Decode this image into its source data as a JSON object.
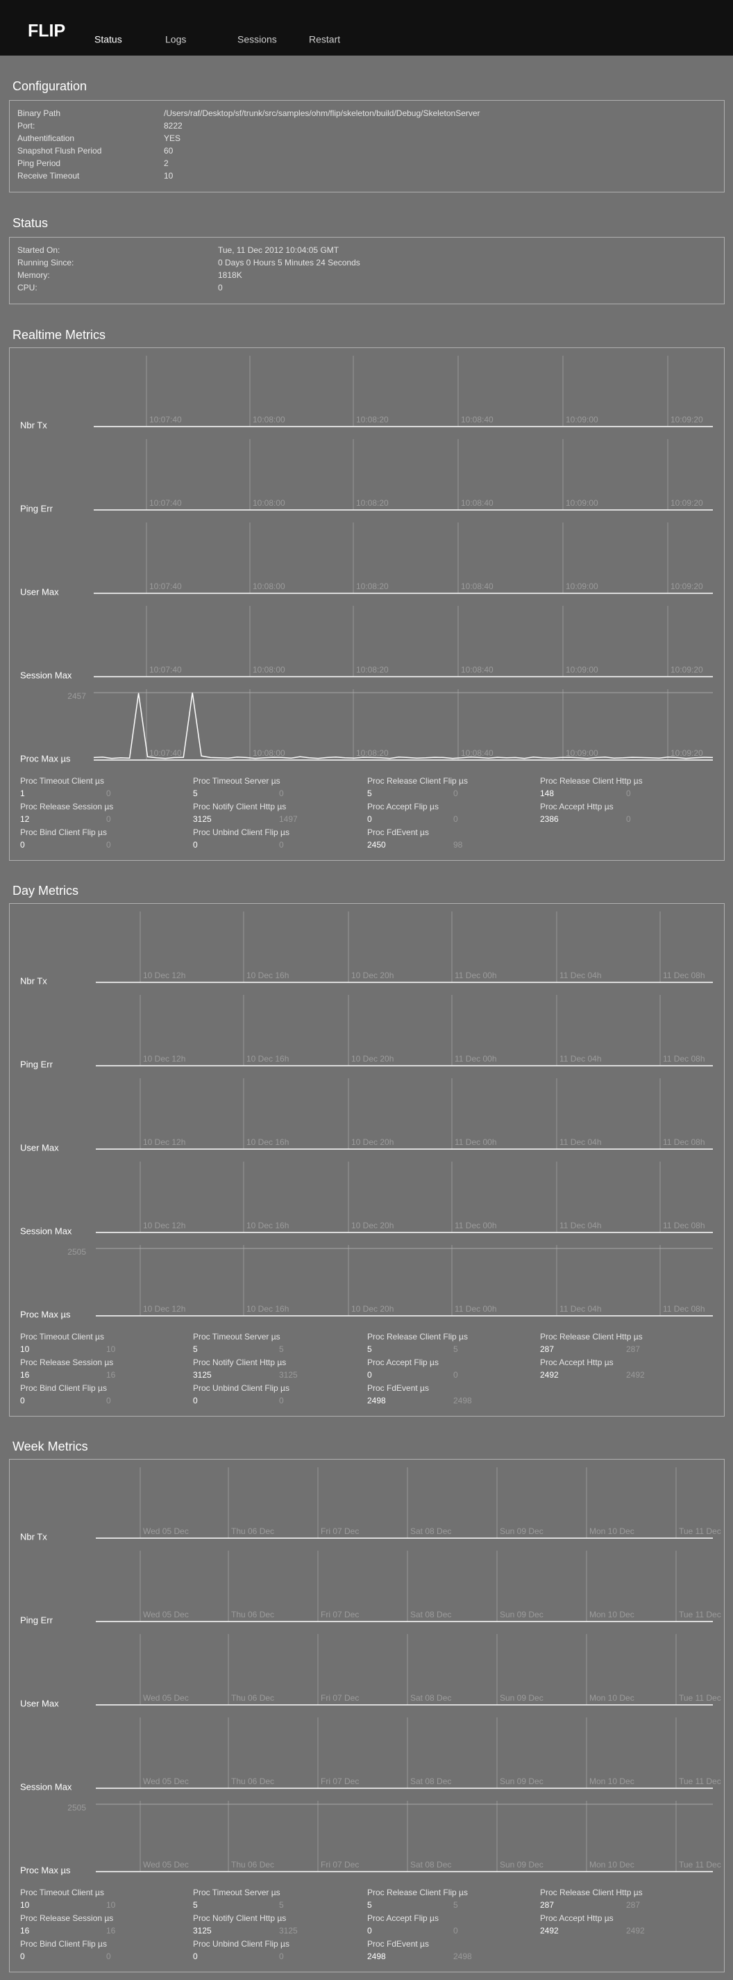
{
  "nav": {
    "logo": "FLIP",
    "items": [
      "Status",
      "Logs",
      "Sessions",
      "Restart"
    ]
  },
  "configuration": {
    "title": "Configuration",
    "rows": [
      {
        "label": "Binary Path",
        "value": "/Users/raf/Desktop/sf/trunk/src/samples/ohm/flip/skeleton/build/Debug/SkeletonServer"
      },
      {
        "label": "Port:",
        "value": "8222"
      },
      {
        "label": "Authentification",
        "value": "YES"
      },
      {
        "label": "Snapshot Flush Period",
        "value": "60"
      },
      {
        "label": "Ping Period",
        "value": "2"
      },
      {
        "label": "Receive Timeout",
        "value": "10"
      }
    ]
  },
  "status": {
    "title": "Status",
    "rows": [
      {
        "label": "Started On:",
        "value": "Tue, 11 Dec 2012 10:04:05 GMT"
      },
      {
        "label": "Running Since:",
        "value": "0 Days 0 Hours 5 Minutes 24 Seconds"
      },
      {
        "label": "Memory:",
        "value": "1818K"
      },
      {
        "label": "CPU:",
        "value": "0"
      }
    ]
  },
  "metrics": [
    {
      "title": "Realtime Metrics",
      "ticks": [
        "10:07:40",
        "10:08:00",
        "10:08:20",
        "10:08:40",
        "10:09:00",
        "10:09:20"
      ],
      "charts": [
        {
          "label": "Nbr Tx"
        },
        {
          "label": "Ping Err"
        },
        {
          "label": "User Max"
        },
        {
          "label": "Session Max"
        },
        {
          "label": "Proc Max µs",
          "type": "line",
          "ylim": [
            0,
            2457
          ],
          "yticks": [
            2457
          ],
          "values": [
            90,
            110,
            60,
            80,
            70,
            2440,
            120,
            80,
            60,
            90,
            100,
            2457,
            150,
            90,
            80,
            70,
            110,
            90,
            60,
            80,
            100,
            90,
            70,
            120,
            80,
            60,
            90,
            110,
            80,
            70,
            100,
            90,
            80,
            60,
            110,
            90,
            70,
            80,
            100,
            90,
            60,
            80,
            110,
            90,
            70,
            100,
            80,
            90,
            60,
            110,
            80,
            70,
            90,
            100,
            80,
            60,
            90,
            110,
            70,
            80,
            100,
            90,
            80,
            70,
            110,
            90,
            60,
            80,
            100,
            90
          ]
        }
      ],
      "stats": [
        {
          "name": "Proc Timeout Client µs",
          "value": 1,
          "value2": 0
        },
        {
          "name": "Proc Timeout Server µs",
          "value": 5,
          "value2": 0
        },
        {
          "name": "Proc Release Client Flip µs",
          "value": 5,
          "value2": 0
        },
        {
          "name": "Proc Release Client Http µs",
          "value": 148,
          "value2": 0
        },
        {
          "name": "Proc Release Session µs",
          "value": 12,
          "value2": 0
        },
        {
          "name": "Proc Notify Client Http µs",
          "value": 3125,
          "value2": 1497
        },
        {
          "name": "Proc Accept Flip µs",
          "value": 0,
          "value2": 0
        },
        {
          "name": "Proc Accept Http µs",
          "value": 2386,
          "value2": 0
        },
        {
          "name": "Proc Bind Client Flip µs",
          "value": 0,
          "value2": 0
        },
        {
          "name": "Proc Unbind Client Flip µs",
          "value": 0,
          "value2": 0
        },
        {
          "name": "Proc FdEvent µs",
          "value": 2450,
          "value2": 98
        }
      ]
    },
    {
      "title": "Day Metrics",
      "ticks": [
        "10 Dec 12h",
        "10 Dec 16h",
        "10 Dec 20h",
        "11 Dec 00h",
        "11 Dec 04h",
        "11 Dec 08h"
      ],
      "charts": [
        {
          "label": "Nbr Tx"
        },
        {
          "label": "Ping Err"
        },
        {
          "label": "User Max"
        },
        {
          "label": "Session Max"
        },
        {
          "label": "Proc Max µs",
          "ylim": [
            0,
            2505
          ],
          "yticks": [
            2505
          ]
        }
      ],
      "stats": [
        {
          "name": "Proc Timeout Client µs",
          "value": 10,
          "value2": 10
        },
        {
          "name": "Proc Timeout Server µs",
          "value": 5,
          "value2": 5
        },
        {
          "name": "Proc Release Client Flip µs",
          "value": 5,
          "value2": 5
        },
        {
          "name": "Proc Release Client Http µs",
          "value": 287,
          "value2": 287
        },
        {
          "name": "Proc Release Session µs",
          "value": 16,
          "value2": 16
        },
        {
          "name": "Proc Notify Client Http µs",
          "value": 3125,
          "value2": 3125
        },
        {
          "name": "Proc Accept Flip µs",
          "value": 0,
          "value2": 0
        },
        {
          "name": "Proc Accept Http µs",
          "value": 2492,
          "value2": 2492
        },
        {
          "name": "Proc Bind Client Flip µs",
          "value": 0,
          "value2": 0
        },
        {
          "name": "Proc Unbind Client Flip µs",
          "value": 0,
          "value2": 0
        },
        {
          "name": "Proc FdEvent µs",
          "value": 2498,
          "value2": 2498
        }
      ]
    },
    {
      "title": "Week Metrics",
      "ticks": [
        "Wed 05 Dec",
        "Thu 06 Dec",
        "Fri 07 Dec",
        "Sat 08 Dec",
        "Sun 09 Dec",
        "Mon 10 Dec",
        "Tue 11 Dec"
      ],
      "charts": [
        {
          "label": "Nbr Tx"
        },
        {
          "label": "Ping Err"
        },
        {
          "label": "User Max"
        },
        {
          "label": "Session Max"
        },
        {
          "label": "Proc Max µs",
          "ylim": [
            0,
            2505
          ],
          "yticks": [
            2505
          ]
        }
      ],
      "stats": [
        {
          "name": "Proc Timeout Client µs",
          "value": 10,
          "value2": 10
        },
        {
          "name": "Proc Timeout Server µs",
          "value": 5,
          "value2": 5
        },
        {
          "name": "Proc Release Client Flip µs",
          "value": 5,
          "value2": 5
        },
        {
          "name": "Proc Release Client Http µs",
          "value": 287,
          "value2": 287
        },
        {
          "name": "Proc Release Session µs",
          "value": 16,
          "value2": 16
        },
        {
          "name": "Proc Notify Client Http µs",
          "value": 3125,
          "value2": 3125
        },
        {
          "name": "Proc Accept Flip µs",
          "value": 0,
          "value2": 0
        },
        {
          "name": "Proc Accept Http µs",
          "value": 2492,
          "value2": 2492
        },
        {
          "name": "Proc Bind Client Flip µs",
          "value": 0,
          "value2": 0
        },
        {
          "name": "Proc Unbind Client Flip µs",
          "value": 0,
          "value2": 0
        },
        {
          "name": "Proc FdEvent µs",
          "value": 2498,
          "value2": 2498
        }
      ]
    }
  ]
}
